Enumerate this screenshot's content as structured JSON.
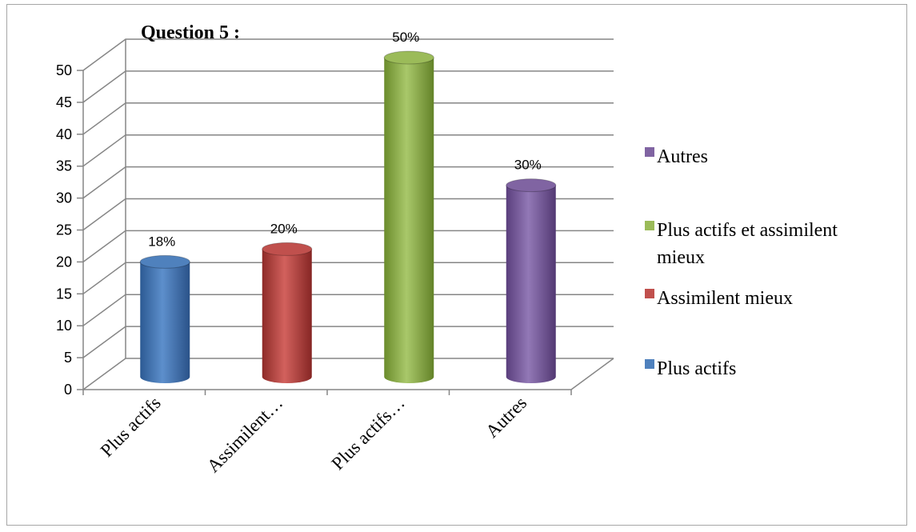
{
  "chart_data": {
    "type": "bar",
    "title": "Question 5 :",
    "categories": [
      "Plus actifs",
      "Assimilent…",
      "Plus actifs…",
      "Autres"
    ],
    "values": [
      18,
      20,
      50,
      30
    ],
    "data_labels": [
      "18%",
      "20%",
      "50%",
      "30%"
    ],
    "yticks": [
      "0",
      "5",
      "10",
      "15",
      "20",
      "25",
      "30",
      "35",
      "40",
      "45",
      "50"
    ],
    "ylim": [
      0,
      50
    ],
    "grid": true,
    "style": "3d-cylinder",
    "legend_position": "right",
    "legend": [
      {
        "label_lines": [
          "Autres"
        ],
        "color": "#8064a2"
      },
      {
        "label_lines": [
          "Plus actifs et assimilent",
          "mieux"
        ],
        "color": "#9bbb59"
      },
      {
        "label_lines": [
          "Assimilent mieux"
        ],
        "color": "#c0504d"
      },
      {
        "label_lines": [
          "Plus actifs"
        ],
        "color": "#4f81bd"
      }
    ],
    "colors": [
      "#4f81bd",
      "#c0504d",
      "#9bbb59",
      "#8064a2"
    ]
  }
}
